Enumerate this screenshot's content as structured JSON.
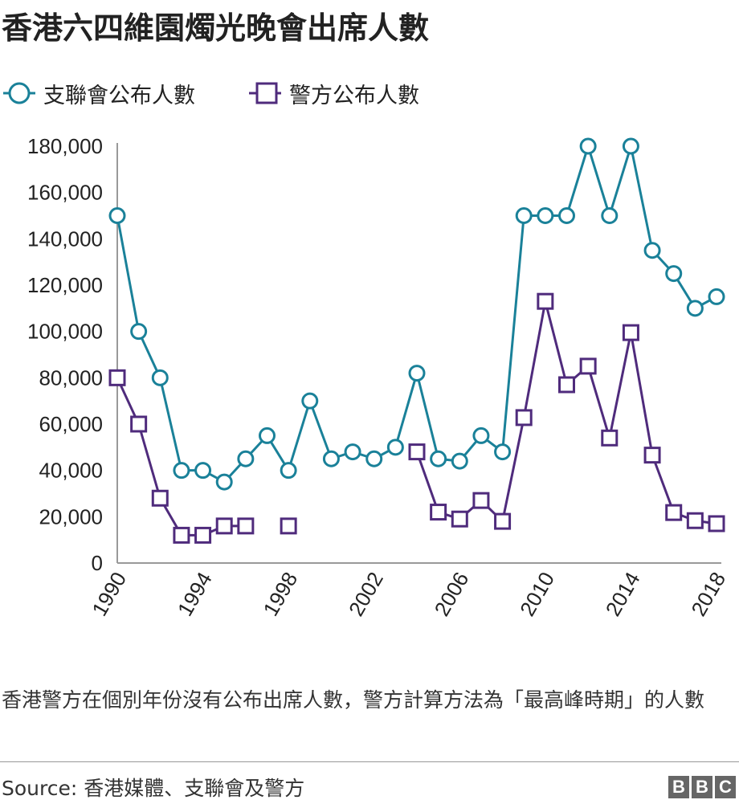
{
  "title": "香港六四維園燭光晚會出席人數",
  "footnote": "香港警方在個別年份沒有公布出席人數，警方計算方法為「最高峰時期」的人數",
  "source": "Source: 香港媒體、支聯會及警方",
  "logo": [
    "B",
    "B",
    "C"
  ],
  "colors": {
    "organiser": "#1a8199",
    "police": "#4f2b7c",
    "axis": "#999999",
    "text": "#222222"
  },
  "chart_data": {
    "type": "line",
    "xlabel": "",
    "ylabel": "",
    "xlim": [
      1990,
      2018
    ],
    "ylim": [
      0,
      180000
    ],
    "x_ticks": [
      "1990",
      "1994",
      "1998",
      "2002",
      "2006",
      "2010",
      "2014",
      "2018"
    ],
    "y_ticks": [
      "0",
      "20,000",
      "40,000",
      "60,000",
      "80,000",
      "100,000",
      "120,000",
      "140,000",
      "160,000",
      "180,000"
    ],
    "grid": false,
    "legend_position": "top-left",
    "series": [
      {
        "name": "支聯會公布人數",
        "marker": "circle",
        "x": [
          1990,
          1991,
          1992,
          1993,
          1994,
          1995,
          1996,
          1997,
          1998,
          1999,
          2000,
          2001,
          2002,
          2003,
          2004,
          2005,
          2006,
          2007,
          2008,
          2009,
          2010,
          2011,
          2012,
          2013,
          2014,
          2015,
          2016,
          2017,
          2018
        ],
        "values": [
          150000,
          100000,
          80000,
          40000,
          40000,
          35000,
          45000,
          55000,
          40000,
          70000,
          45000,
          48000,
          45000,
          50000,
          82000,
          45000,
          44000,
          55000,
          48000,
          150000,
          150000,
          150000,
          180000,
          150000,
          180000,
          135000,
          125000,
          110000,
          115000
        ]
      },
      {
        "name": "警方公布人數",
        "marker": "square",
        "x": [
          1990,
          1991,
          1992,
          1993,
          1994,
          1995,
          1996,
          1997,
          1998,
          1999,
          2000,
          2001,
          2002,
          2003,
          2004,
          2005,
          2006,
          2007,
          2008,
          2009,
          2010,
          2011,
          2012,
          2013,
          2014,
          2015,
          2016,
          2017,
          2018
        ],
        "values": [
          80000,
          60000,
          28000,
          12000,
          12000,
          16000,
          16000,
          null,
          16000,
          null,
          null,
          null,
          null,
          null,
          48000,
          22000,
          19000,
          27000,
          18000,
          62800,
          113000,
          77000,
          85000,
          54000,
          99500,
          46600,
          21800,
          18300,
          17000
        ]
      }
    ]
  }
}
